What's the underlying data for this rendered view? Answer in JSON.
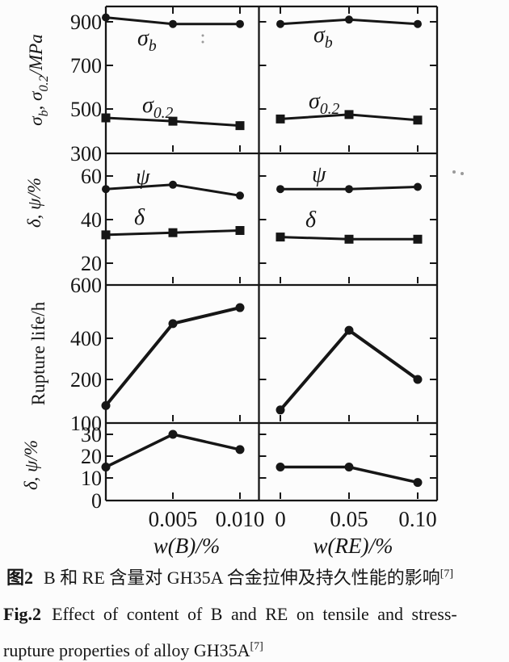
{
  "figure": {
    "caption_zh": {
      "label": "图2",
      "text": "B 和 RE 含量对 GH35A 合金拉伸及持久性能的影响",
      "sup": "[7]"
    },
    "caption_en": {
      "label": "Fig.2",
      "line1": "Effect of content of B and RE on tensile and stress-",
      "line2": "rupture properties of alloy GH35A",
      "sup": "[7]"
    }
  },
  "chart_data": {
    "type": "line",
    "title": "Effect of content of B and RE on tensile and stress-rupture properties of alloy GH35A",
    "grid": "off",
    "layout": "4 rows x 2 columns, shared y axes per row, boxed panels",
    "marker_color": "#161616",
    "columns": [
      {
        "xlabel": "w(B)/%",
        "x": [
          0,
          0.005,
          0.01
        ],
        "xtick_labels": [
          "0.005",
          "0.010"
        ],
        "panels": [
          {
            "ylabel": "σ_{b}, σ_{0.2}/MPa",
            "ylim": [
              300,
              975
            ],
            "yticks": [
              900,
              700,
              500,
              300
            ],
            "series": [
              {
                "name": "σ_{b}",
                "marker": "circle",
                "values": [
                  920,
                  890,
                  890
                ]
              },
              {
                "name": "σ_{0.2}",
                "marker": "square",
                "values": [
                  460,
                  445,
                  425
                ]
              }
            ]
          },
          {
            "ylabel": "δ, ψ/%",
            "ylim": [
              14,
              70
            ],
            "yticks": [
              60,
              40,
              20
            ],
            "series": [
              {
                "name": "ψ",
                "marker": "circle",
                "values": [
                  54,
                  56,
                  51
                ]
              },
              {
                "name": "δ",
                "marker": "square",
                "values": [
                  33,
                  34,
                  35
                ]
              }
            ]
          },
          {
            "ylabel": "Rupture life/h",
            "ylim": [
              100,
              600
            ],
            "yticks": [
              600,
              400,
              200,
              100
            ],
            "series": [
              {
                "name": "",
                "marker": "circle",
                "values": [
                  140,
                  455,
                  515
                ]
              }
            ]
          },
          {
            "ylabel": "δ, ψ/%",
            "ylim": [
              0,
              35
            ],
            "yticks": [
              30,
              20,
              10,
              0
            ],
            "series": [
              {
                "name": "",
                "marker": "circle",
                "values": [
                  15,
                  30,
                  23
                ]
              }
            ]
          }
        ]
      },
      {
        "xlabel": "w(RE)/%",
        "x": [
          0,
          0.05,
          0.1
        ],
        "xtick_labels": [
          "0",
          "0.05",
          "0.10"
        ],
        "panels": [
          {
            "yticks": [
              900,
              700,
              500,
              300
            ],
            "series": [
              {
                "name": "σ_{b}",
                "marker": "circle",
                "values": [
                  890,
                  910,
                  890
                ]
              },
              {
                "name": "σ_{0.2}",
                "marker": "square",
                "values": [
                  455,
                  475,
                  450
                ]
              }
            ]
          },
          {
            "yticks": [
              60,
              40,
              20
            ],
            "series": [
              {
                "name": "ψ",
                "marker": "circle",
                "values": [
                  54,
                  54,
                  55
                ]
              },
              {
                "name": "δ",
                "marker": "square",
                "values": [
                  32,
                  31,
                  31
                ]
              }
            ]
          },
          {
            "yticks": [
              600,
              400,
              200,
              100
            ],
            "series": [
              {
                "name": "",
                "marker": "circle",
                "values": [
                  130,
                  430,
                  200
                ]
              }
            ]
          },
          {
            "yticks": [
              30,
              20,
              10,
              0
            ],
            "series": [
              {
                "name": "",
                "marker": "circle",
                "values": [
                  15,
                  15,
                  8
                ]
              }
            ]
          }
        ]
      }
    ]
  }
}
